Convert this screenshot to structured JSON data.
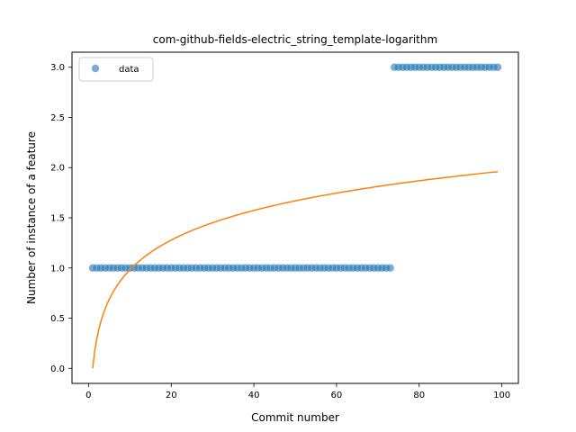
{
  "chart_data": {
    "type": "scatter",
    "title": "com-github-fields-electric_string_template-logarithm",
    "xlabel": "Commit number",
    "ylabel": "Number of instance of a feature",
    "xlim": [
      -4,
      104
    ],
    "ylim": [
      -0.15,
      3.15
    ],
    "xticks": [
      0,
      20,
      40,
      60,
      80,
      100
    ],
    "yticks": [
      0.0,
      0.5,
      1.0,
      1.5,
      2.0,
      2.5,
      3.0
    ],
    "xtick_labels": [
      "0",
      "20",
      "40",
      "60",
      "80",
      "100"
    ],
    "ytick_labels": [
      "0.0",
      "0.5",
      "1.0",
      "1.5",
      "2.0",
      "2.5",
      "3.0"
    ],
    "grid": false,
    "legend_position": "top-left",
    "series": [
      {
        "name": "data",
        "kind": "points",
        "color": "#1f77b4",
        "x_range": [
          1,
          99
        ],
        "segments": [
          {
            "x_from": 1,
            "x_to": 73,
            "y": 1
          },
          {
            "x_from": 74,
            "x_to": 99,
            "y": 3
          }
        ]
      },
      {
        "kind": "line",
        "color": "#ff7f0e",
        "curve": "y = 0.4265 * ln(x)",
        "x": [
          1,
          2,
          3,
          5,
          10,
          20,
          30,
          40,
          50,
          60,
          70,
          80,
          90,
          99
        ],
        "y": [
          0.0,
          0.296,
          0.469,
          0.686,
          0.982,
          1.278,
          1.451,
          1.573,
          1.668,
          1.746,
          1.812,
          1.869,
          1.919,
          1.96
        ]
      }
    ]
  }
}
